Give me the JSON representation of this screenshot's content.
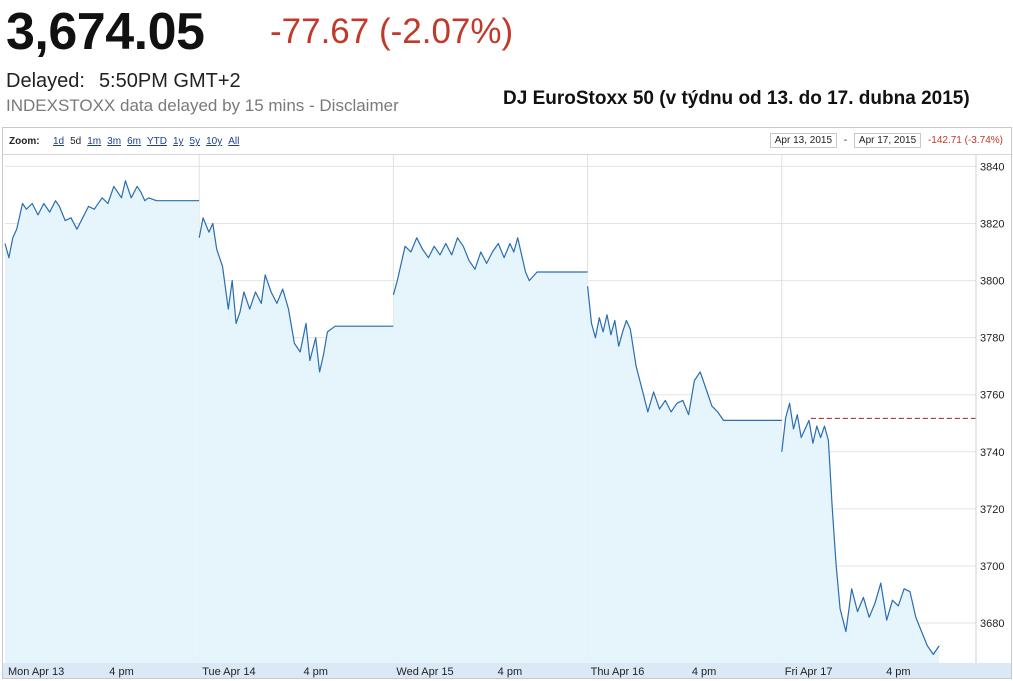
{
  "quote": {
    "price": "3,674.05",
    "change": "-77.67 (-2.07%)",
    "delayed_label": "Delayed:",
    "delayed_time": "5:50PM GMT+2",
    "disclaimer": "INDEXSTOXX data delayed by 15 mins - Disclaimer",
    "change_color": "#c0392b"
  },
  "headline": "DJ EuroStoxx 50 (v týdnu od 13. do 17. dubna 2015)",
  "toolbar": {
    "zoom_label": "Zoom:",
    "zoom_options": [
      "1d",
      "5d",
      "1m",
      "3m",
      "6m",
      "YTD",
      "1y",
      "5y",
      "10y",
      "All"
    ],
    "active_zoom": "5d",
    "range_start": "Apr 13, 2015",
    "range_sep": "-",
    "range_end": "Apr 17, 2015",
    "range_change": "-142.71 (-3.74%)"
  },
  "chart_data": {
    "type": "area",
    "ylim": [
      3666,
      3844
    ],
    "y_ticks": [
      3680,
      3700,
      3720,
      3740,
      3760,
      3780,
      3800,
      3820,
      3840
    ],
    "x_tick_labels": [
      "Mon Apr 13",
      "4 pm",
      "Tue Apr 14",
      "4 pm",
      "Wed Apr 15",
      "4 pm",
      "Thu Apr 16",
      "4 pm",
      "Fri Apr 17",
      "4 pm"
    ],
    "x_range": [
      0,
      5
    ],
    "day_separators": [
      1,
      2,
      3,
      4
    ],
    "previous_close": 3751.72,
    "line_color": "#2a6db0",
    "fill_color": "#e6f4fc",
    "prev_close_color": "#a02020",
    "series": [
      {
        "days": [
          {
            "x": [
              0.0,
              0.02,
              0.04,
              0.06,
              0.09,
              0.11,
              0.14,
              0.17,
              0.2,
              0.23,
              0.26,
              0.28,
              0.31,
              0.34,
              0.37,
              0.4,
              0.43,
              0.46,
              0.5,
              0.53,
              0.56,
              0.6,
              0.62,
              0.65,
              0.68,
              0.7,
              0.72,
              0.74,
              0.78,
              0.8,
              1.0
            ],
            "y": [
              3813,
              3808,
              3815,
              3818,
              3827,
              3825,
              3827,
              3823,
              3827,
              3824,
              3828,
              3826,
              3821,
              3822,
              3818,
              3822,
              3826,
              3825,
              3829,
              3827,
              3833,
              3829,
              3835,
              3829,
              3833,
              3831,
              3828,
              3829,
              3828,
              3828,
              3828
            ]
          },
          {
            "x": [
              1.0,
              1.02,
              1.05,
              1.07,
              1.09,
              1.12,
              1.15,
              1.17,
              1.19,
              1.21,
              1.23,
              1.26,
              1.29,
              1.32,
              1.34,
              1.37,
              1.4,
              1.43,
              1.46,
              1.49,
              1.52,
              1.55,
              1.57,
              1.6,
              1.62,
              1.64,
              1.66,
              1.7,
              1.74,
              1.78,
              2.0
            ],
            "y": [
              3815,
              3822,
              3817,
              3820,
              3811,
              3805,
              3790,
              3800,
              3785,
              3789,
              3796,
              3790,
              3796,
              3792,
              3802,
              3796,
              3792,
              3797,
              3790,
              3778,
              3775,
              3785,
              3772,
              3780,
              3768,
              3774,
              3782,
              3784,
              3784,
              3784,
              3784
            ]
          },
          {
            "x": [
              2.0,
              2.02,
              2.04,
              2.06,
              2.09,
              2.12,
              2.15,
              2.18,
              2.21,
              2.24,
              2.27,
              2.3,
              2.33,
              2.36,
              2.39,
              2.42,
              2.45,
              2.48,
              2.51,
              2.54,
              2.57,
              2.6,
              2.62,
              2.64,
              2.66,
              2.68,
              2.7,
              2.74,
              2.8,
              3.0
            ],
            "y": [
              3795,
              3800,
              3806,
              3812,
              3810,
              3815,
              3811,
              3808,
              3812,
              3809,
              3813,
              3809,
              3815,
              3812,
              3807,
              3804,
              3810,
              3806,
              3810,
              3813,
              3808,
              3813,
              3810,
              3815,
              3809,
              3803,
              3800,
              3803,
              3803,
              3803
            ]
          },
          {
            "x": [
              3.0,
              3.02,
              3.04,
              3.06,
              3.08,
              3.1,
              3.12,
              3.14,
              3.16,
              3.18,
              3.2,
              3.22,
              3.25,
              3.28,
              3.31,
              3.34,
              3.37,
              3.4,
              3.43,
              3.46,
              3.49,
              3.52,
              3.55,
              3.58,
              3.61,
              3.64,
              3.67,
              3.7,
              3.74,
              3.8,
              4.0
            ],
            "y": [
              3798,
              3785,
              3780,
              3787,
              3782,
              3788,
              3781,
              3786,
              3777,
              3782,
              3786,
              3783,
              3770,
              3762,
              3754,
              3761,
              3755,
              3758,
              3754,
              3757,
              3758,
              3753,
              3765,
              3768,
              3762,
              3756,
              3754,
              3751,
              3751,
              3751,
              3751
            ]
          },
          {
            "x": [
              4.0,
              4.02,
              4.04,
              4.06,
              4.08,
              4.1,
              4.12,
              4.14,
              4.16,
              4.18,
              4.2,
              4.22,
              4.24,
              4.26,
              4.28,
              4.3,
              4.33,
              4.36,
              4.39,
              4.42,
              4.45,
              4.48,
              4.51,
              4.54,
              4.57,
              4.6,
              4.63,
              4.66,
              4.69,
              4.72,
              4.75,
              4.78,
              4.81
            ],
            "y": [
              3740,
              3752,
              3757,
              3748,
              3753,
              3745,
              3748,
              3751,
              3743,
              3749,
              3745,
              3749,
              3744,
              3720,
              3700,
              3685,
              3677,
              3692,
              3684,
              3689,
              3682,
              3687,
              3694,
              3681,
              3688,
              3686,
              3692,
              3691,
              3682,
              3677,
              3672,
              3669,
              3672
            ]
          }
        ]
      }
    ]
  }
}
